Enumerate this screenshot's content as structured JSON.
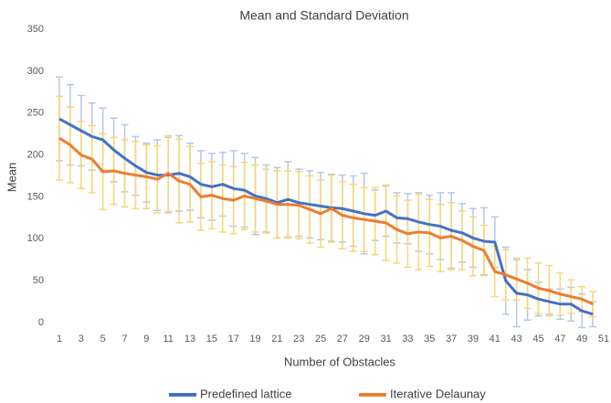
{
  "chart_data": {
    "type": "line",
    "title": "Mean and Standard Deviation",
    "x_label": "Number of Obstacles",
    "y_label": "Mean",
    "x": [
      1,
      2,
      3,
      4,
      5,
      6,
      7,
      8,
      9,
      10,
      11,
      12,
      13,
      14,
      15,
      16,
      17,
      18,
      19,
      20,
      21,
      22,
      23,
      24,
      25,
      26,
      27,
      28,
      29,
      30,
      31,
      32,
      33,
      34,
      35,
      36,
      37,
      38,
      39,
      40,
      41,
      42,
      43,
      44,
      45,
      46,
      47,
      48,
      49,
      50
    ],
    "xlim": [
      1,
      51
    ],
    "xticks": [
      1,
      3,
      5,
      7,
      9,
      11,
      13,
      15,
      17,
      19,
      21,
      23,
      25,
      27,
      29,
      31,
      33,
      35,
      37,
      39,
      41,
      43,
      45,
      47,
      49,
      51
    ],
    "ylim": [
      0,
      350
    ],
    "yticks": [
      0,
      50,
      100,
      150,
      200,
      250,
      300,
      350
    ],
    "grid": false,
    "legend": "bottom",
    "series": [
      {
        "name": "Predefined lattice",
        "color": "#4472c4",
        "error_color": "#b4c7e7",
        "values": [
          243,
          236,
          229,
          222,
          218,
          206,
          196,
          187,
          179,
          176,
          176,
          178,
          174,
          165,
          162,
          165,
          160,
          158,
          151,
          148,
          143,
          147,
          143,
          141,
          139,
          137,
          136,
          133,
          130,
          128,
          133,
          125,
          124,
          120,
          117,
          115,
          110,
          107,
          101,
          97,
          96,
          50,
          35,
          33,
          28,
          25,
          22,
          22,
          14,
          10
        ],
        "errors": [
          50,
          48,
          42,
          40,
          38,
          38,
          40,
          35,
          35,
          42,
          45,
          45,
          40,
          40,
          40,
          38,
          45,
          44,
          46,
          40,
          42,
          45,
          40,
          40,
          40,
          40,
          40,
          42,
          48,
          30,
          30,
          30,
          30,
          35,
          35,
          40,
          45,
          35,
          35,
          40,
          30,
          40,
          40,
          30,
          20,
          15,
          18,
          20,
          20,
          15
        ]
      },
      {
        "name": "Iterative Delaunay",
        "color": "#ed7d31",
        "error_color": "#f7d774",
        "values": [
          220,
          212,
          200,
          195,
          180,
          181,
          178,
          176,
          174,
          171,
          178,
          169,
          165,
          150,
          152,
          148,
          146,
          151,
          148,
          145,
          141,
          141,
          140,
          135,
          130,
          136,
          128,
          125,
          123,
          121,
          119,
          111,
          106,
          108,
          107,
          101,
          103,
          98,
          91,
          86,
          61,
          57,
          52,
          47,
          41,
          38,
          34,
          31,
          28,
          22
        ],
        "errors": [
          50,
          45,
          40,
          40,
          45,
          40,
          40,
          40,
          38,
          40,
          45,
          50,
          45,
          40,
          40,
          40,
          40,
          40,
          40,
          38,
          40,
          40,
          40,
          40,
          40,
          40,
          40,
          40,
          38,
          40,
          45,
          40,
          40,
          45,
          40,
          40,
          40,
          35,
          35,
          30,
          30,
          30,
          25,
          30,
          30,
          30,
          25,
          20,
          15,
          15
        ]
      }
    ]
  }
}
